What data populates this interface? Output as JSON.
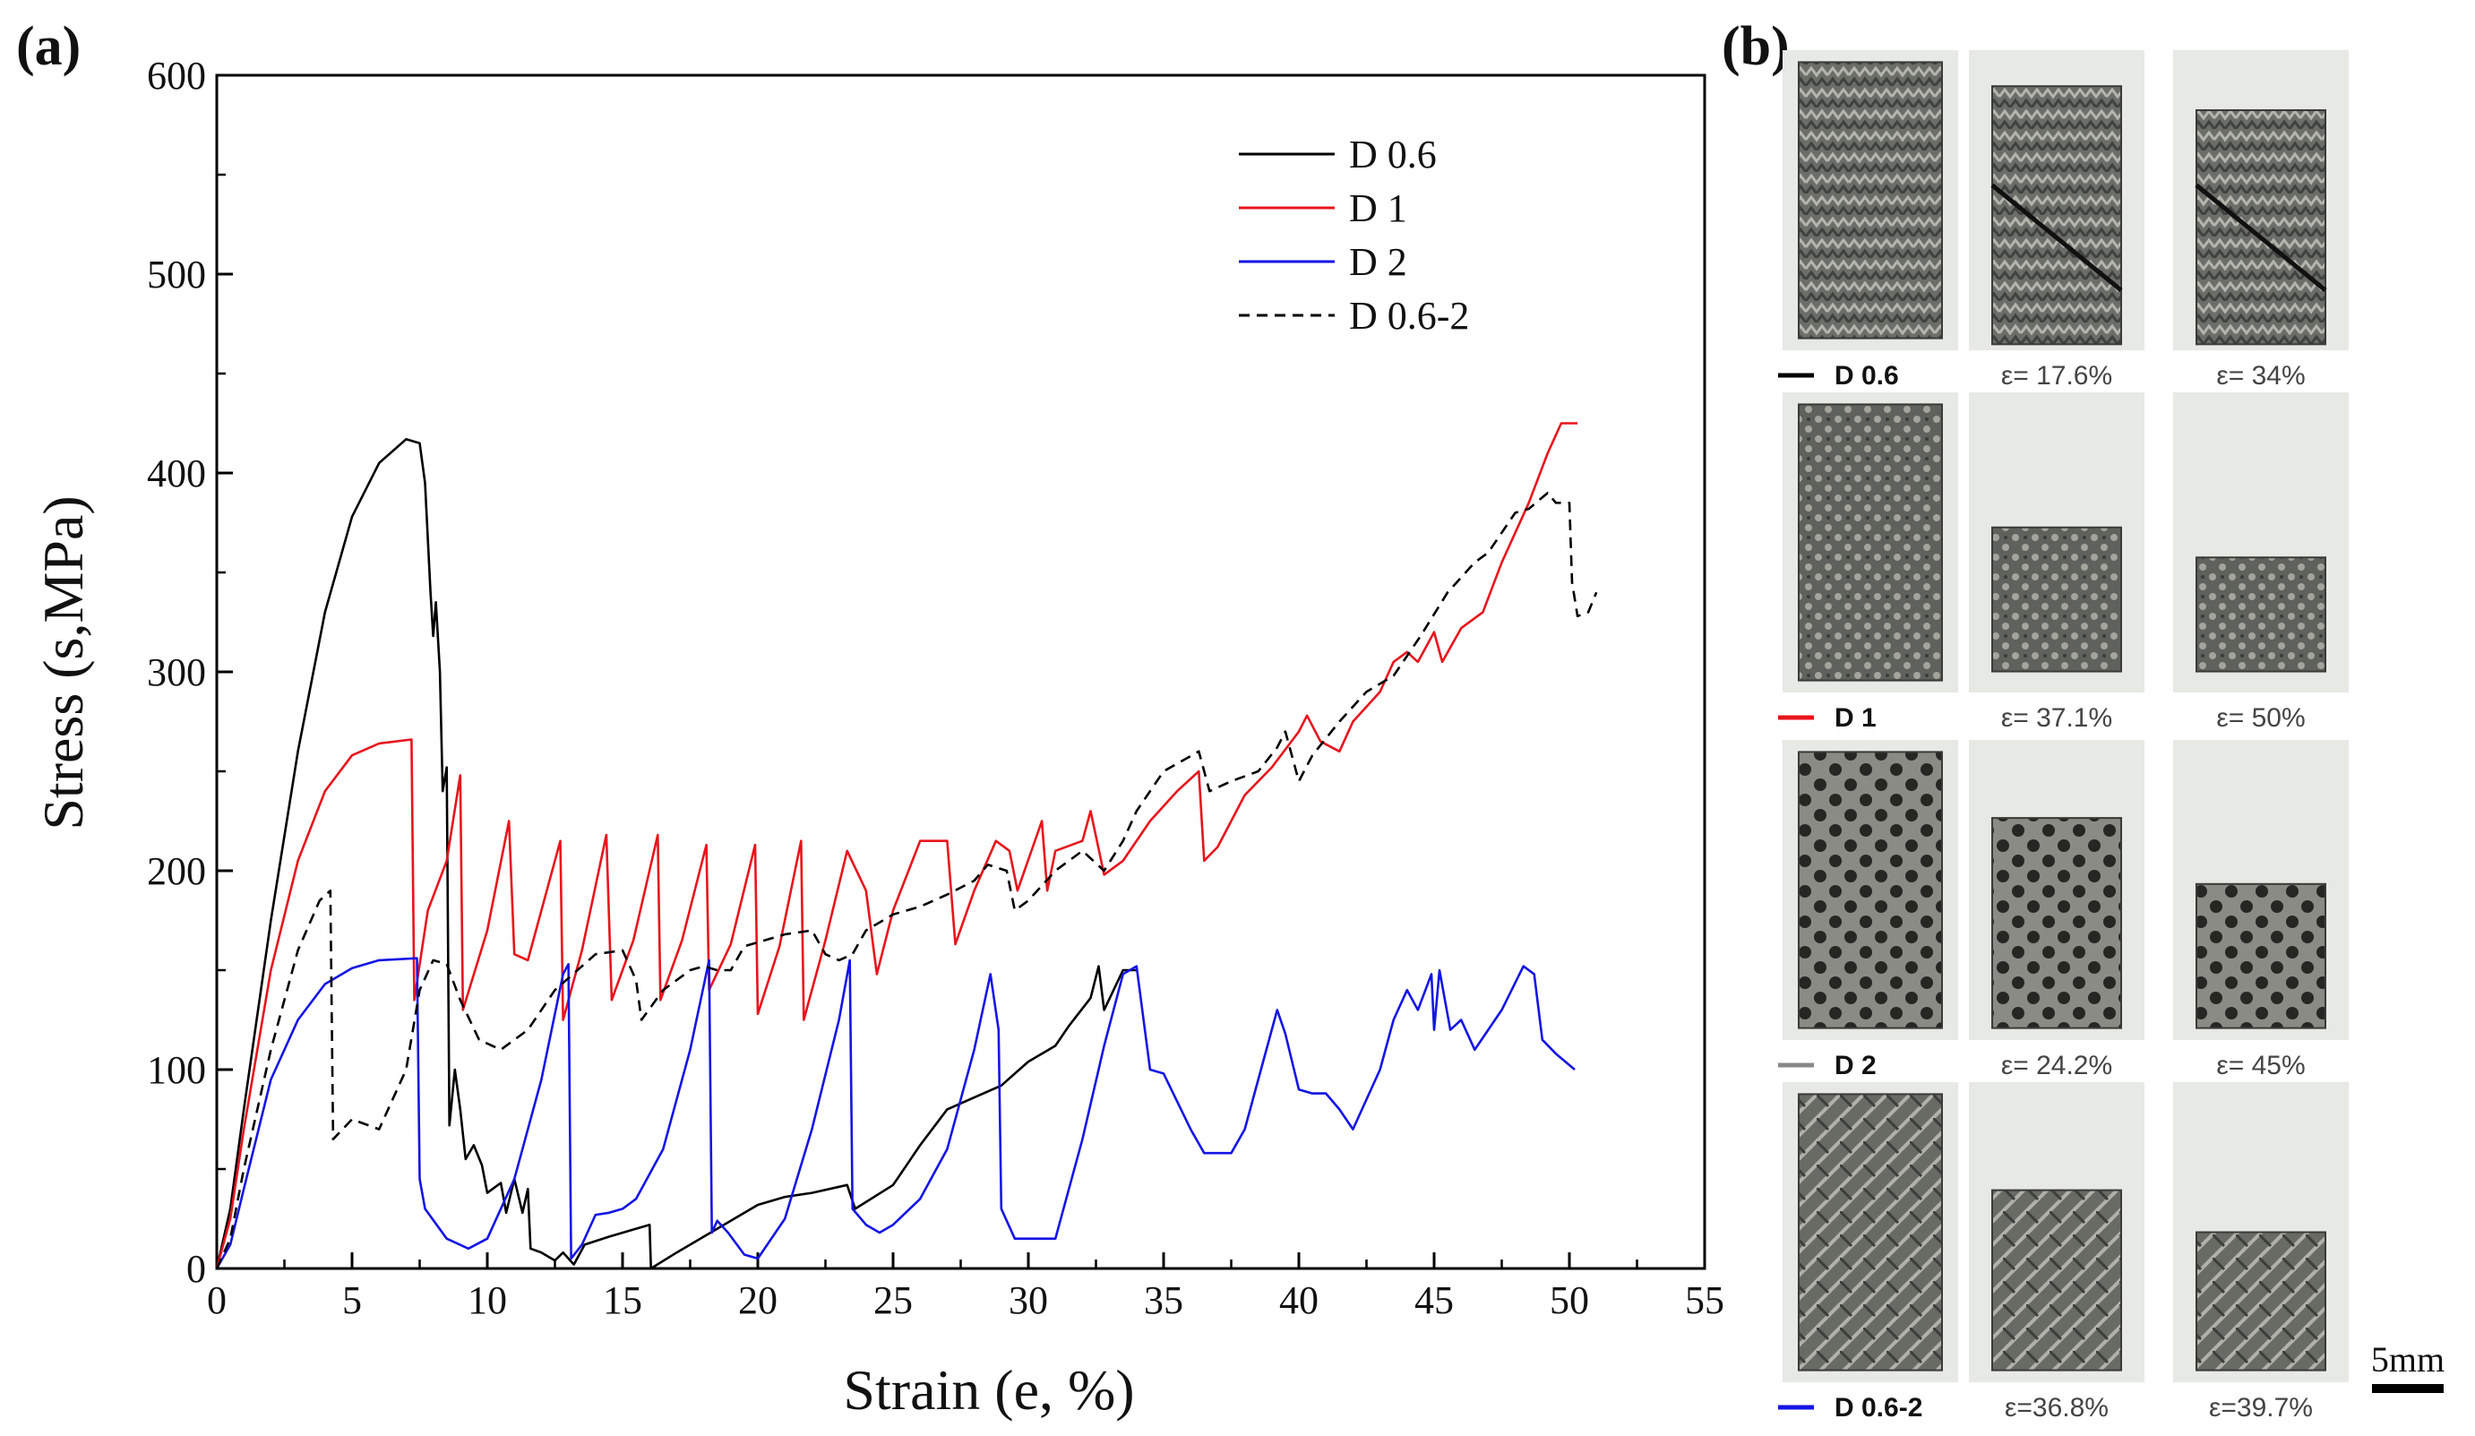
{
  "panel_a_label": "(a)",
  "panel_b_label": "(b)",
  "chart_data": {
    "type": "line",
    "title": "",
    "xlabel": "Strain (e, %)",
    "ylabel": "Stress (s,MPa)",
    "xlim": [
      0,
      55
    ],
    "ylim": [
      0,
      600
    ],
    "xticks": [
      0,
      5,
      10,
      15,
      20,
      25,
      30,
      35,
      40,
      45,
      50,
      55
    ],
    "yticks": [
      0,
      100,
      200,
      300,
      400,
      500,
      600
    ],
    "legend_position": "top-right",
    "series": [
      {
        "name": "D 0.6",
        "color": "#000000",
        "dash": "solid",
        "points": [
          [
            0,
            0
          ],
          [
            0.5,
            30
          ],
          [
            1,
            80
          ],
          [
            2,
            175
          ],
          [
            3,
            260
          ],
          [
            4,
            330
          ],
          [
            5,
            378
          ],
          [
            6,
            405
          ],
          [
            7,
            417
          ],
          [
            7.5,
            415
          ],
          [
            7.7,
            395
          ],
          [
            7.9,
            340
          ],
          [
            8.0,
            318
          ],
          [
            8.1,
            335
          ],
          [
            8.25,
            300
          ],
          [
            8.35,
            240
          ],
          [
            8.5,
            252
          ],
          [
            8.6,
            72
          ],
          [
            8.8,
            100
          ],
          [
            9.0,
            80
          ],
          [
            9.2,
            55
          ],
          [
            9.5,
            62
          ],
          [
            9.8,
            52
          ],
          [
            10,
            38
          ],
          [
            10.5,
            43
          ],
          [
            10.7,
            28
          ],
          [
            11,
            45
          ],
          [
            11.3,
            28
          ],
          [
            11.5,
            40
          ],
          [
            11.6,
            10
          ],
          [
            12,
            8
          ],
          [
            12.5,
            4
          ],
          [
            12.8,
            8
          ],
          [
            13.2,
            2
          ],
          [
            13.6,
            12
          ],
          [
            14.5,
            16
          ],
          [
            15.5,
            20
          ],
          [
            16.0,
            22
          ],
          [
            16.05,
            0
          ],
          [
            17,
            8
          ],
          [
            18,
            16
          ],
          [
            19,
            24
          ],
          [
            20,
            32
          ],
          [
            21,
            36
          ],
          [
            22,
            38
          ],
          [
            23.3,
            42
          ],
          [
            23.6,
            30
          ],
          [
            25,
            42
          ],
          [
            26,
            62
          ],
          [
            27,
            80
          ],
          [
            28,
            86
          ],
          [
            29,
            92
          ],
          [
            30,
            104
          ],
          [
            31,
            112
          ],
          [
            31.5,
            122
          ],
          [
            32.3,
            136
          ],
          [
            32.6,
            152
          ],
          [
            32.8,
            130
          ],
          [
            33.5,
            150
          ],
          [
            34,
            150
          ]
        ]
      },
      {
        "name": "D 1",
        "color": "#e8141c",
        "dash": "solid",
        "points": [
          [
            0,
            0
          ],
          [
            0.5,
            25
          ],
          [
            1,
            70
          ],
          [
            2,
            150
          ],
          [
            3,
            205
          ],
          [
            4,
            240
          ],
          [
            5,
            258
          ],
          [
            6,
            264
          ],
          [
            7.2,
            266
          ],
          [
            7.3,
            135
          ],
          [
            7.8,
            180
          ],
          [
            8.5,
            205
          ],
          [
            9.0,
            248
          ],
          [
            9.1,
            130
          ],
          [
            10,
            170
          ],
          [
            10.8,
            225
          ],
          [
            11.0,
            158
          ],
          [
            11.5,
            155
          ],
          [
            12.7,
            215
          ],
          [
            12.8,
            125
          ],
          [
            13.5,
            160
          ],
          [
            14.4,
            218
          ],
          [
            14.6,
            135
          ],
          [
            15.4,
            165
          ],
          [
            16.3,
            218
          ],
          [
            16.4,
            135
          ],
          [
            17.2,
            165
          ],
          [
            18.1,
            213
          ],
          [
            18.2,
            140
          ],
          [
            19,
            163
          ],
          [
            19.9,
            213
          ],
          [
            20.0,
            128
          ],
          [
            20.8,
            162
          ],
          [
            21.6,
            215
          ],
          [
            21.7,
            125
          ],
          [
            22.5,
            165
          ],
          [
            23.3,
            210
          ],
          [
            24,
            190
          ],
          [
            24.4,
            148
          ],
          [
            25,
            180
          ],
          [
            26,
            215
          ],
          [
            27,
            215
          ],
          [
            27.3,
            163
          ],
          [
            28,
            190
          ],
          [
            28.8,
            215
          ],
          [
            29.3,
            210
          ],
          [
            29.6,
            190
          ],
          [
            30.5,
            225
          ],
          [
            30.7,
            190
          ],
          [
            31,
            210
          ],
          [
            32,
            215
          ],
          [
            32.3,
            230
          ],
          [
            32.8,
            198
          ],
          [
            33.5,
            205
          ],
          [
            34.5,
            225
          ],
          [
            35.5,
            240
          ],
          [
            36.3,
            250
          ],
          [
            36.5,
            205
          ],
          [
            37,
            212
          ],
          [
            38,
            238
          ],
          [
            39,
            252
          ],
          [
            40,
            270
          ],
          [
            40.3,
            278
          ],
          [
            40.8,
            265
          ],
          [
            41.5,
            260
          ],
          [
            42,
            275
          ],
          [
            43,
            290
          ],
          [
            43.5,
            305
          ],
          [
            44,
            310
          ],
          [
            44.4,
            305
          ],
          [
            45,
            320
          ],
          [
            45.3,
            305
          ],
          [
            46,
            322
          ],
          [
            46.8,
            330
          ],
          [
            47.5,
            355
          ],
          [
            48.5,
            385
          ],
          [
            49.2,
            410
          ],
          [
            49.7,
            425
          ],
          [
            50.3,
            425
          ]
        ]
      },
      {
        "name": "D 2",
        "color": "#1414e6",
        "dash": "solid",
        "points": [
          [
            0,
            0
          ],
          [
            0.5,
            12
          ],
          [
            1,
            40
          ],
          [
            2,
            95
          ],
          [
            3,
            125
          ],
          [
            4,
            143
          ],
          [
            5,
            151
          ],
          [
            6,
            155
          ],
          [
            7.4,
            156
          ],
          [
            7.5,
            45
          ],
          [
            7.7,
            30
          ],
          [
            8.5,
            15
          ],
          [
            9.3,
            10
          ],
          [
            10,
            15
          ],
          [
            11,
            45
          ],
          [
            12,
            95
          ],
          [
            12.8,
            148
          ],
          [
            13.0,
            153
          ],
          [
            13.1,
            5
          ],
          [
            13.5,
            12
          ],
          [
            14,
            27
          ],
          [
            14.5,
            28
          ],
          [
            15,
            30
          ],
          [
            15.5,
            35
          ],
          [
            16.5,
            60
          ],
          [
            17.5,
            110
          ],
          [
            18.2,
            155
          ],
          [
            18.3,
            18
          ],
          [
            18.5,
            24
          ],
          [
            18.9,
            18
          ],
          [
            19.5,
            7
          ],
          [
            20,
            5
          ],
          [
            21,
            25
          ],
          [
            22,
            70
          ],
          [
            23,
            125
          ],
          [
            23.4,
            155
          ],
          [
            23.5,
            30
          ],
          [
            24,
            22
          ],
          [
            24.5,
            18
          ],
          [
            25,
            22
          ],
          [
            26,
            35
          ],
          [
            27,
            60
          ],
          [
            28,
            110
          ],
          [
            28.6,
            148
          ],
          [
            28.9,
            120
          ],
          [
            29.0,
            30
          ],
          [
            29.5,
            15
          ],
          [
            30.5,
            15
          ],
          [
            31,
            15
          ],
          [
            32,
            65
          ],
          [
            32.8,
            112
          ],
          [
            33.5,
            148
          ],
          [
            34,
            152
          ],
          [
            34.5,
            100
          ],
          [
            35,
            98
          ],
          [
            36,
            70
          ],
          [
            36.5,
            58
          ],
          [
            37,
            58
          ],
          [
            37.5,
            58
          ],
          [
            38,
            70
          ],
          [
            38.6,
            100
          ],
          [
            39.2,
            130
          ],
          [
            39.5,
            118
          ],
          [
            40,
            90
          ],
          [
            40.5,
            88
          ],
          [
            41,
            88
          ],
          [
            41.5,
            80
          ],
          [
            42,
            70
          ],
          [
            43,
            100
          ],
          [
            43.5,
            125
          ],
          [
            44,
            140
          ],
          [
            44.4,
            130
          ],
          [
            44.9,
            148
          ],
          [
            45,
            120
          ],
          [
            45.2,
            150
          ],
          [
            45.6,
            120
          ],
          [
            46,
            125
          ],
          [
            46.5,
            110
          ],
          [
            47,
            120
          ],
          [
            47.5,
            130
          ],
          [
            48.3,
            152
          ],
          [
            48.7,
            148
          ],
          [
            49.0,
            115
          ],
          [
            49.5,
            108
          ],
          [
            50.2,
            100
          ]
        ]
      },
      {
        "name": "D 0.6-2",
        "color": "#000000",
        "dash": "dashed",
        "points": [
          [
            0,
            0
          ],
          [
            0.5,
            15
          ],
          [
            1,
            50
          ],
          [
            2,
            110
          ],
          [
            3,
            160
          ],
          [
            3.8,
            185
          ],
          [
            4.2,
            190
          ],
          [
            4.3,
            65
          ],
          [
            5,
            75
          ],
          [
            6,
            70
          ],
          [
            7,
            100
          ],
          [
            7.5,
            140
          ],
          [
            8,
            155
          ],
          [
            8.5,
            153
          ],
          [
            9,
            135
          ],
          [
            9.7,
            115
          ],
          [
            10.5,
            110
          ],
          [
            11.5,
            120
          ],
          [
            12.5,
            140
          ],
          [
            14,
            158
          ],
          [
            15,
            160
          ],
          [
            15.5,
            145
          ],
          [
            15.7,
            125
          ],
          [
            16.5,
            140
          ],
          [
            17.5,
            150
          ],
          [
            18,
            152
          ],
          [
            18.5,
            150
          ],
          [
            19,
            150
          ],
          [
            19.5,
            162
          ],
          [
            21,
            168
          ],
          [
            22,
            170
          ],
          [
            22.5,
            158
          ],
          [
            23,
            155
          ],
          [
            23.5,
            158
          ],
          [
            24,
            170
          ],
          [
            25,
            178
          ],
          [
            26,
            182
          ],
          [
            27,
            188
          ],
          [
            28,
            195
          ],
          [
            28.5,
            203
          ],
          [
            29.2,
            200
          ],
          [
            29.5,
            180
          ],
          [
            30,
            185
          ],
          [
            31,
            200
          ],
          [
            32,
            210
          ],
          [
            32.8,
            200
          ],
          [
            33.5,
            215
          ],
          [
            34,
            230
          ],
          [
            35,
            250
          ],
          [
            36.3,
            260
          ],
          [
            36.7,
            240
          ],
          [
            37.5,
            245
          ],
          [
            38.5,
            250
          ],
          [
            39.2,
            262
          ],
          [
            39.5,
            270
          ],
          [
            40,
            245
          ],
          [
            40.5,
            258
          ],
          [
            41.5,
            275
          ],
          [
            42.5,
            290
          ],
          [
            43.5,
            298
          ],
          [
            44.5,
            318
          ],
          [
            45.5,
            340
          ],
          [
            46.5,
            355
          ],
          [
            47,
            360
          ],
          [
            48,
            380
          ],
          [
            48.5,
            382
          ],
          [
            49.2,
            390
          ],
          [
            49.5,
            385
          ],
          [
            50,
            385
          ],
          [
            50.1,
            345
          ],
          [
            50.3,
            328
          ],
          [
            50.7,
            330
          ],
          [
            51,
            340
          ]
        ]
      }
    ]
  },
  "panel_b": {
    "rows": [
      {
        "name": "D 0.6",
        "color": "#000000",
        "captions": [
          "ε= 17.6%",
          "ε= 34%"
        ]
      },
      {
        "name": "D 1",
        "color": "#e8141c",
        "captions": [
          "ε= 37.1%",
          "ε= 50%"
        ]
      },
      {
        "name": "D 2",
        "color": "#888888",
        "captions": [
          "ε= 24.2%",
          "ε= 45%"
        ]
      },
      {
        "name": "D 0.6-2",
        "color": "#1414e6",
        "captions": [
          "ε=36.8%",
          "ε=39.7%"
        ]
      }
    ],
    "scale_label": "5mm"
  }
}
